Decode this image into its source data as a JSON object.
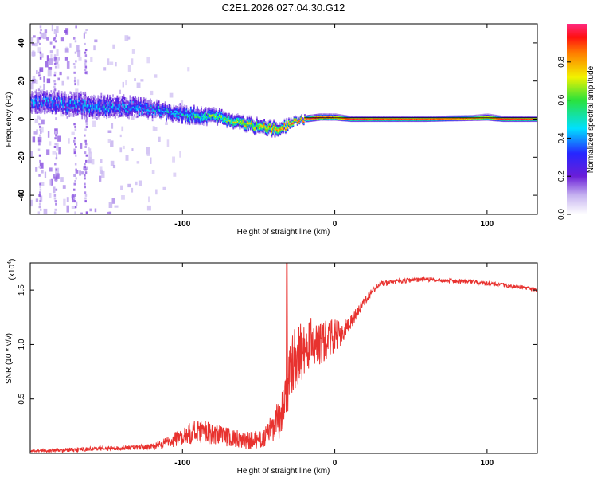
{
  "title": "C2E1.2026.027.04.30.G12",
  "colors": {
    "snr_line": "#e8322f",
    "axis": "#000000",
    "background": "#ffffff"
  },
  "colorbar": {
    "label": "Normalized spectral amplitude",
    "range": [
      0,
      1
    ],
    "ticks": [
      {
        "value": 0.0,
        "label": "0.0"
      },
      {
        "value": 0.2,
        "label": "0.2"
      },
      {
        "value": 0.4,
        "label": "0.4"
      },
      {
        "value": 0.6,
        "label": "0.6"
      },
      {
        "value": 0.8,
        "label": "0.8"
      }
    ]
  },
  "chart_data": [
    {
      "type": "heatmap",
      "name": "spectrogram",
      "xlabel": "Height of straight line (km)",
      "ylabel": "Frequency (Hz)",
      "xlim": [
        -200,
        133
      ],
      "ylim": [
        -50,
        50
      ],
      "xticks": [
        {
          "value": -100,
          "label": "-100"
        },
        {
          "value": 0,
          "label": "0"
        },
        {
          "value": 100,
          "label": "100"
        }
      ],
      "yticks": [
        {
          "value": -40,
          "label": "-40"
        },
        {
          "value": -20,
          "label": "-20"
        },
        {
          "value": 0,
          "label": "0"
        },
        {
          "value": 20,
          "label": "20"
        },
        {
          "value": 40,
          "label": "40"
        }
      ],
      "ridge": {
        "x": [
          -200,
          -175,
          -150,
          -125,
          -110,
          -100,
          -90,
          -80,
          -70,
          -60,
          -50,
          -40,
          -30,
          -25,
          -20,
          -10,
          0,
          10,
          30,
          60,
          90,
          100,
          110,
          133
        ],
        "freq": [
          9,
          8,
          7,
          6,
          4,
          3,
          2,
          1.5,
          0,
          -2,
          -4,
          -5,
          -3,
          -1,
          0,
          1,
          1,
          0,
          0,
          0,
          0.5,
          1,
          0,
          0
        ],
        "amplitude": [
          0.25,
          0.3,
          0.3,
          0.3,
          0.35,
          0.4,
          0.45,
          0.5,
          0.6,
          0.65,
          0.7,
          0.75,
          0.85,
          0.9,
          0.9,
          0.9,
          0.8,
          0.95,
          0.92,
          0.9,
          0.85,
          0.8,
          0.95,
          0.9
        ],
        "halfwidth": [
          6,
          6,
          6,
          5,
          4,
          4,
          4,
          3.5,
          3,
          3,
          3,
          3,
          2,
          1.5,
          1.5,
          1.5,
          1.5,
          1.2,
          1.2,
          1.2,
          1.2,
          1.5,
          1.2,
          1.2
        ]
      }
    },
    {
      "type": "line",
      "name": "snr",
      "xlabel": "Height of straight line (km)",
      "ylabel": "SNR (10 * v/v)",
      "yscale_label": "(x10",
      "yscale_exponent": "4",
      "xlim": [
        -200,
        133
      ],
      "ylim": [
        0,
        1.75
      ],
      "xticks": [
        {
          "value": -100,
          "label": "-100"
        },
        {
          "value": 0,
          "label": "0"
        },
        {
          "value": 100,
          "label": "100"
        }
      ],
      "yticks": [
        {
          "value": 0.5,
          "label": "0.5"
        },
        {
          "value": 1.0,
          "label": "1.0"
        },
        {
          "value": 1.5,
          "label": "1.5"
        }
      ],
      "series": [
        {
          "name": "SNR",
          "x": [
            -200,
            -180,
            -160,
            -140,
            -120,
            -110,
            -100,
            -90,
            -80,
            -70,
            -60,
            -50,
            -45,
            -40,
            -35,
            -32,
            -30,
            -25,
            -20,
            -15,
            -10,
            -5,
            0,
            5,
            10,
            15,
            20,
            25,
            30,
            40,
            50,
            60,
            70,
            80,
            90,
            100,
            110,
            120,
            133
          ],
          "y": [
            0.02,
            0.03,
            0.04,
            0.05,
            0.06,
            0.1,
            0.15,
            0.22,
            0.18,
            0.15,
            0.12,
            0.12,
            0.16,
            0.25,
            0.35,
            0.5,
            0.75,
            0.9,
            0.95,
            1.05,
            1.0,
            1.05,
            1.08,
            1.1,
            1.2,
            1.3,
            1.4,
            1.5,
            1.55,
            1.58,
            1.59,
            1.6,
            1.59,
            1.58,
            1.58,
            1.56,
            1.55,
            1.53,
            1.5
          ],
          "noise": [
            0.01,
            0.02,
            0.02,
            0.02,
            0.03,
            0.06,
            0.08,
            0.12,
            0.1,
            0.09,
            0.08,
            0.08,
            0.1,
            0.15,
            0.2,
            0.25,
            0.3,
            0.28,
            0.25,
            0.22,
            0.2,
            0.18,
            0.15,
            0.1,
            0.08,
            0.06,
            0.04,
            0.03,
            0.03,
            0.025,
            0.02,
            0.02,
            0.02,
            0.02,
            0.02,
            0.02,
            0.02,
            0.02,
            0.02
          ]
        }
      ],
      "spike": {
        "x": -31.5,
        "y": 1.75
      }
    }
  ]
}
